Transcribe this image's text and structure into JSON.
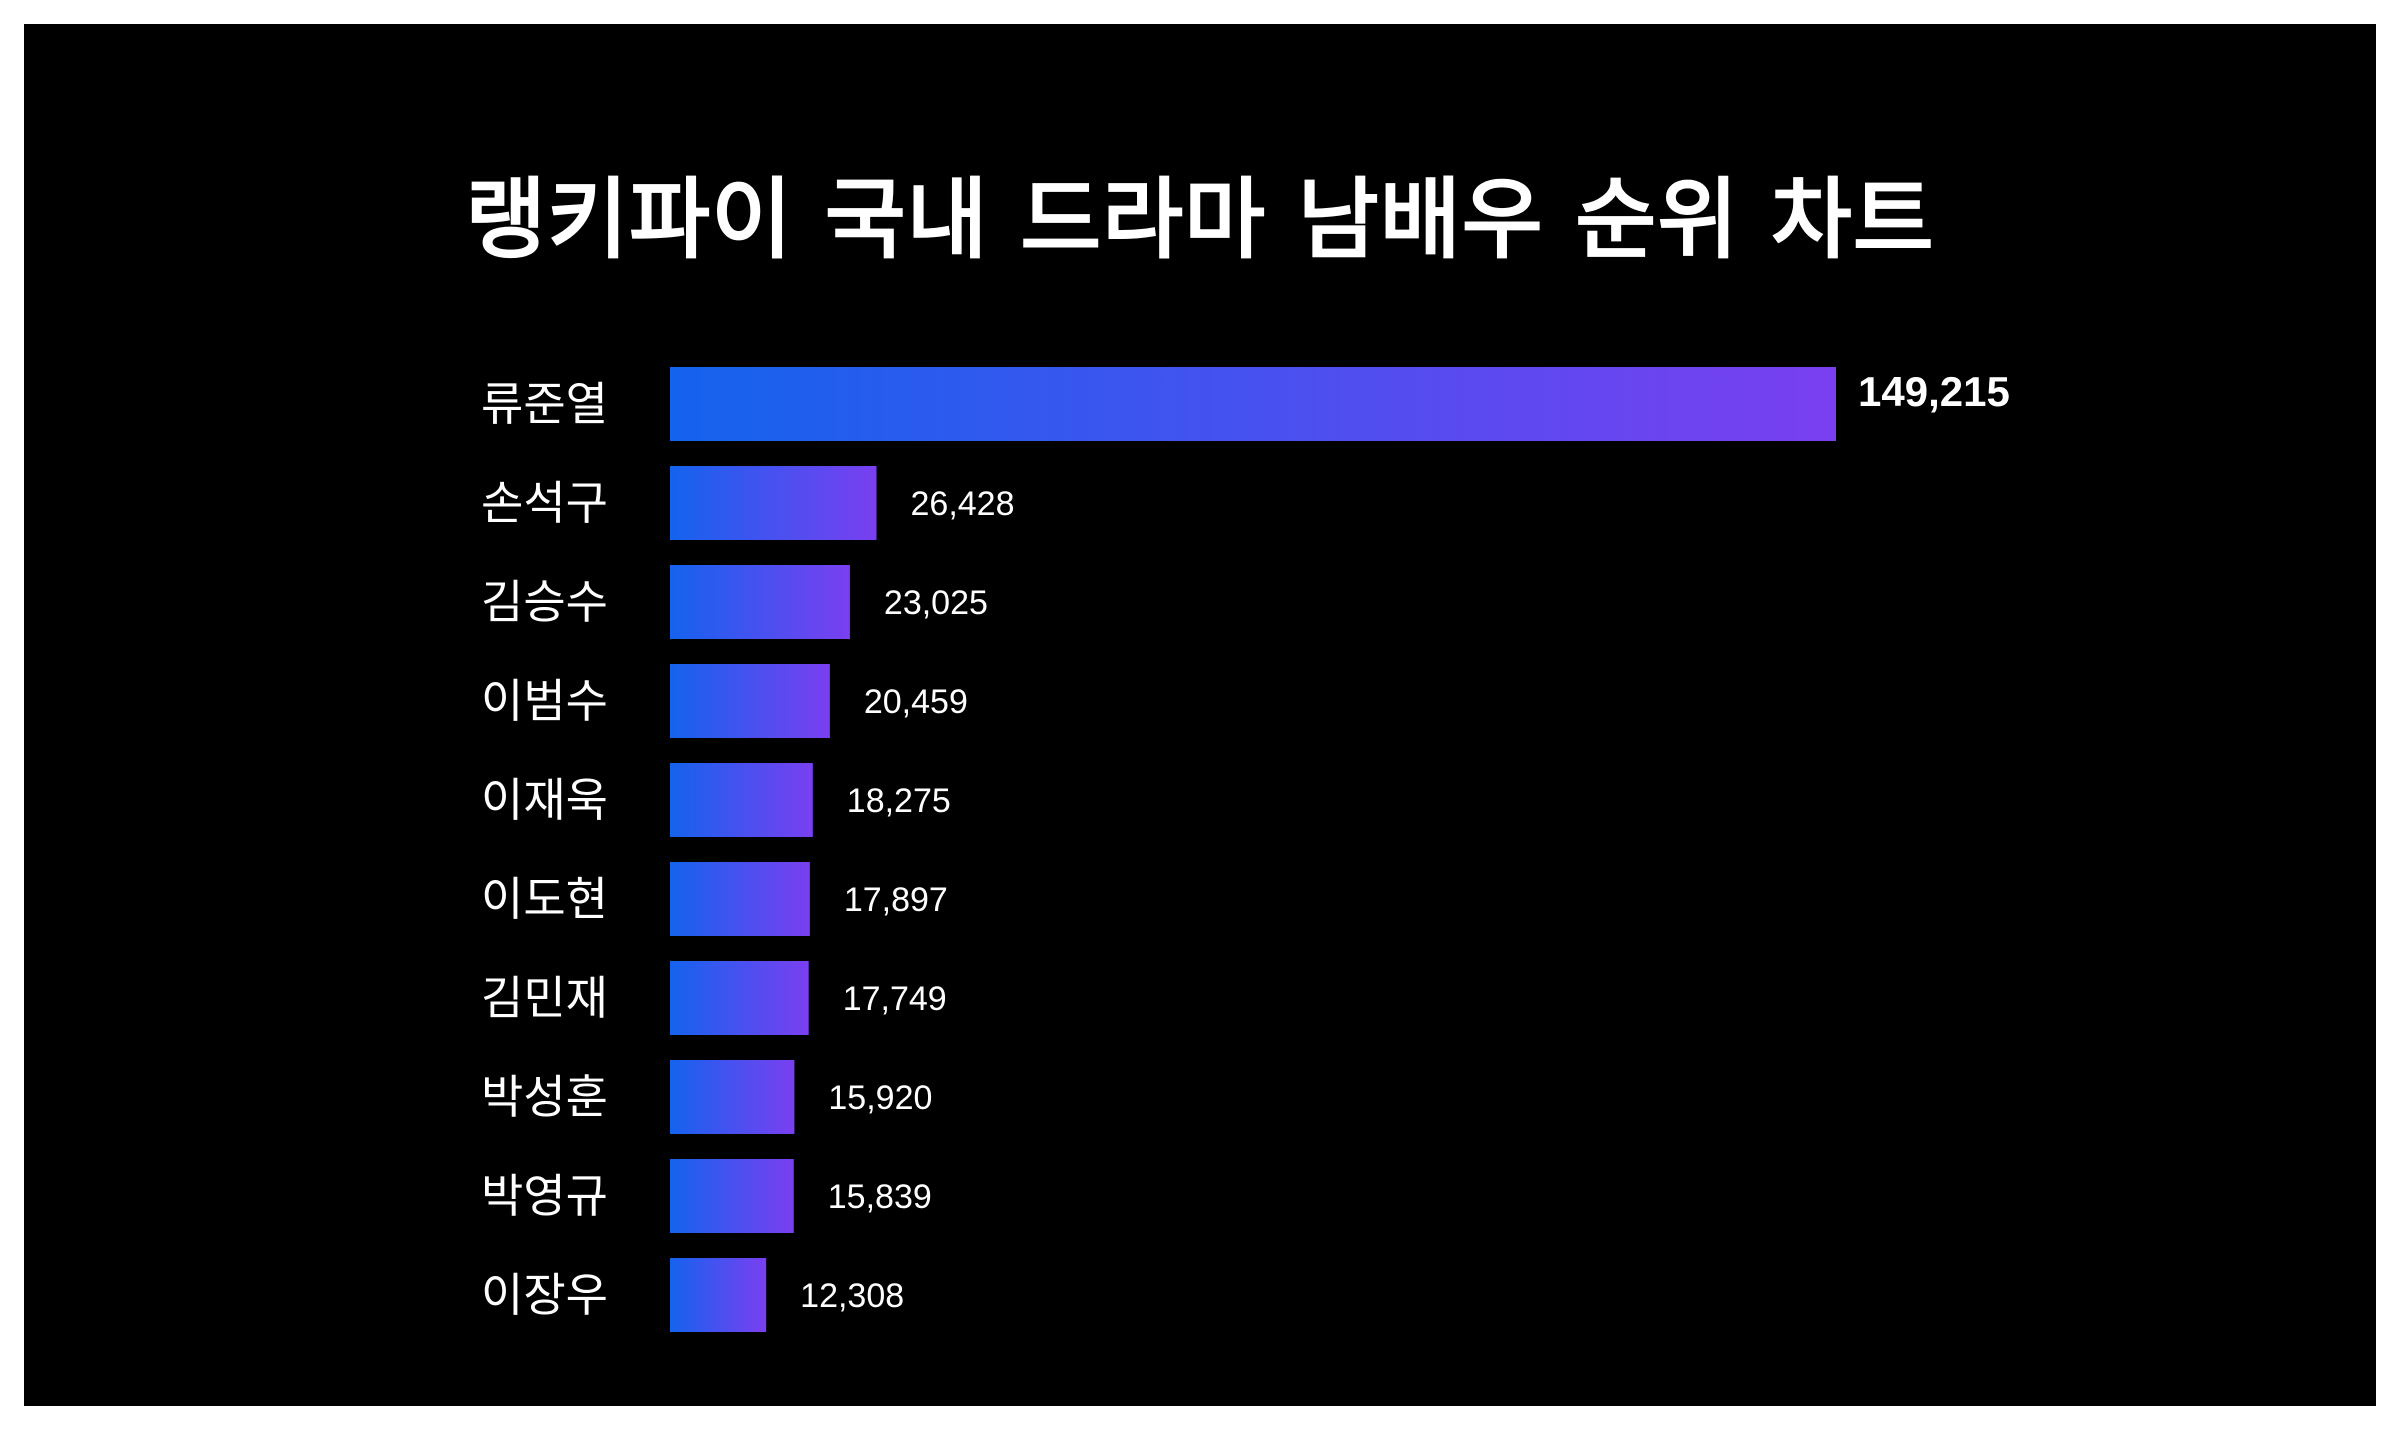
{
  "chart_data": {
    "type": "bar",
    "orientation": "horizontal",
    "title": "랭키파이 국내 드라마 남배우 순위 차트",
    "categories": [
      "류준열",
      "손석구",
      "김승수",
      "이범수",
      "이재욱",
      "이도현",
      "김민재",
      "박성훈",
      "박영규",
      "이장우"
    ],
    "values": [
      149215,
      26428,
      23025,
      20459,
      18275,
      17897,
      17749,
      15920,
      15839,
      12308
    ],
    "value_labels": [
      "149,215",
      "26,428",
      "23,025",
      "20,459",
      "18,275",
      "17,897",
      "17,749",
      "15,920",
      "15,839",
      "12,308"
    ],
    "xlabel": "",
    "ylabel": "",
    "grid": false,
    "legend": "none",
    "colors": {
      "background": "#000000",
      "bar_gradient_start": "#1463ee",
      "bar_gradient_end": "#7a3ff0",
      "text": "#ffffff"
    }
  }
}
